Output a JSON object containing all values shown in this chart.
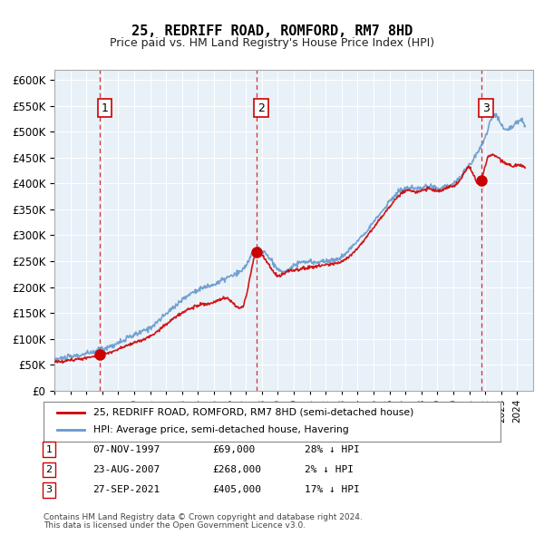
{
  "title": "25, REDRIFF ROAD, ROMFORD, RM7 8HD",
  "subtitle": "Price paid vs. HM Land Registry's House Price Index (HPI)",
  "hpi_color": "#6699cc",
  "price_color": "#cc0000",
  "background_color": "#ddeeff",
  "plot_bg": "#e8f0f8",
  "ylim": [
    0,
    620000
  ],
  "yticks": [
    0,
    50000,
    100000,
    150000,
    200000,
    250000,
    300000,
    350000,
    400000,
    450000,
    500000,
    550000,
    600000
  ],
  "xlim_start": 1995.0,
  "xlim_end": 2025.0,
  "sales": [
    {
      "date": 1997.85,
      "price": 69000,
      "label": "1",
      "hpi_pct": "28% ↓ HPI",
      "date_str": "07-NOV-1997",
      "price_str": "£69,000"
    },
    {
      "date": 2007.65,
      "price": 268000,
      "label": "2",
      "hpi_pct": "2% ↓ HPI",
      "date_str": "23-AUG-2007",
      "price_str": "£268,000"
    },
    {
      "date": 2021.75,
      "price": 405000,
      "label": "3",
      "hpi_pct": "17% ↓ HPI",
      "date_str": "27-SEP-2021",
      "price_str": "£405,000"
    }
  ],
  "legend_label_price": "25, REDRIFF ROAD, ROMFORD, RM7 8HD (semi-detached house)",
  "legend_label_hpi": "HPI: Average price, semi-detached house, Havering",
  "footnote1": "Contains HM Land Registry data © Crown copyright and database right 2024.",
  "footnote2": "This data is licensed under the Open Government Licence v3.0."
}
